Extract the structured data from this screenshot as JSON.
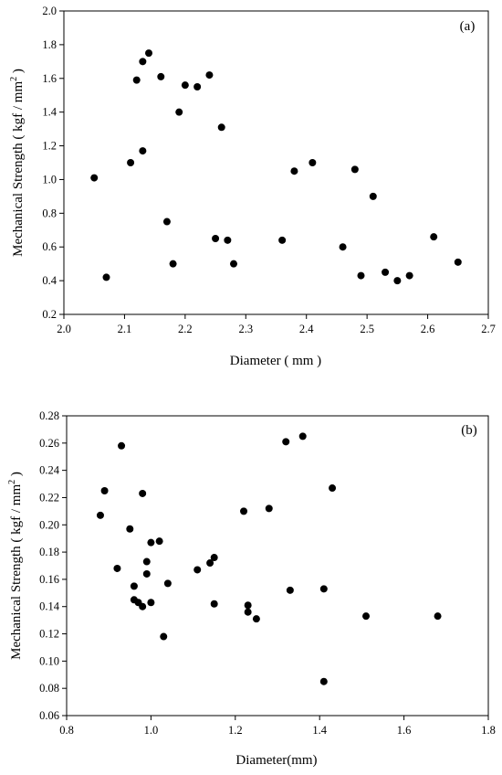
{
  "chart_data": [
    {
      "type": "scatter",
      "panel_label": "(a)",
      "xlabel": "Diameter ( mm )",
      "ylabel_main": "Mechanical Strength ( kgf / mm",
      "ylabel_sup": "2",
      "ylabel_tail": " )",
      "xlim": [
        2.0,
        2.7
      ],
      "ylim": [
        0.2,
        2.0
      ],
      "xticks": [
        "2.0",
        "2.1",
        "2.2",
        "2.3",
        "2.4",
        "2.5",
        "2.6",
        "2.7"
      ],
      "yticks": [
        "0.2",
        "0.4",
        "0.6",
        "0.8",
        "1.0",
        "1.2",
        "1.4",
        "1.6",
        "1.8",
        "2.0"
      ],
      "grid": false,
      "marker_color": "#000000",
      "points": [
        {
          "x": 2.05,
          "y": 1.01
        },
        {
          "x": 2.07,
          "y": 0.42
        },
        {
          "x": 2.11,
          "y": 1.1
        },
        {
          "x": 2.12,
          "y": 1.59
        },
        {
          "x": 2.13,
          "y": 1.7
        },
        {
          "x": 2.13,
          "y": 1.17
        },
        {
          "x": 2.14,
          "y": 1.75
        },
        {
          "x": 2.16,
          "y": 1.61
        },
        {
          "x": 2.17,
          "y": 0.75
        },
        {
          "x": 2.18,
          "y": 0.5
        },
        {
          "x": 2.19,
          "y": 1.4
        },
        {
          "x": 2.2,
          "y": 1.56
        },
        {
          "x": 2.22,
          "y": 1.55
        },
        {
          "x": 2.24,
          "y": 1.62
        },
        {
          "x": 2.25,
          "y": 0.65
        },
        {
          "x": 2.26,
          "y": 1.31
        },
        {
          "x": 2.27,
          "y": 0.64
        },
        {
          "x": 2.28,
          "y": 0.5
        },
        {
          "x": 2.36,
          "y": 0.64
        },
        {
          "x": 2.38,
          "y": 1.05
        },
        {
          "x": 2.41,
          "y": 1.1
        },
        {
          "x": 2.46,
          "y": 0.6
        },
        {
          "x": 2.48,
          "y": 1.06
        },
        {
          "x": 2.49,
          "y": 0.43
        },
        {
          "x": 2.51,
          "y": 0.9
        },
        {
          "x": 2.53,
          "y": 0.45
        },
        {
          "x": 2.55,
          "y": 0.4
        },
        {
          "x": 2.57,
          "y": 0.43
        },
        {
          "x": 2.61,
          "y": 0.66
        },
        {
          "x": 2.65,
          "y": 0.51
        }
      ]
    },
    {
      "type": "scatter",
      "panel_label": "(b)",
      "xlabel": "Diameter(mm)",
      "ylabel_main": "Mechanical Strength ( kgf / mm",
      "ylabel_sup": "2",
      "ylabel_tail": " )",
      "xlim": [
        0.8,
        1.8
      ],
      "ylim": [
        0.06,
        0.28
      ],
      "xticks": [
        "0.8",
        "1.0",
        "1.2",
        "1.4",
        "1.6",
        "1.8"
      ],
      "yticks": [
        "0.06",
        "0.08",
        "0.10",
        "0.12",
        "0.14",
        "0.16",
        "0.18",
        "0.20",
        "0.22",
        "0.24",
        "0.26",
        "0.28"
      ],
      "grid": false,
      "marker_color": "#000000",
      "points": [
        {
          "x": 0.88,
          "y": 0.207
        },
        {
          "x": 0.89,
          "y": 0.225
        },
        {
          "x": 0.92,
          "y": 0.168
        },
        {
          "x": 0.93,
          "y": 0.258
        },
        {
          "x": 0.95,
          "y": 0.197
        },
        {
          "x": 0.96,
          "y": 0.155
        },
        {
          "x": 0.96,
          "y": 0.145
        },
        {
          "x": 0.97,
          "y": 0.143
        },
        {
          "x": 0.98,
          "y": 0.14
        },
        {
          "x": 0.98,
          "y": 0.223
        },
        {
          "x": 0.99,
          "y": 0.173
        },
        {
          "x": 0.99,
          "y": 0.164
        },
        {
          "x": 1.0,
          "y": 0.187
        },
        {
          "x": 1.0,
          "y": 0.143
        },
        {
          "x": 1.02,
          "y": 0.188
        },
        {
          "x": 1.03,
          "y": 0.118
        },
        {
          "x": 1.04,
          "y": 0.157
        },
        {
          "x": 1.11,
          "y": 0.167
        },
        {
          "x": 1.14,
          "y": 0.172
        },
        {
          "x": 1.15,
          "y": 0.176
        },
        {
          "x": 1.15,
          "y": 0.142
        },
        {
          "x": 1.22,
          "y": 0.21
        },
        {
          "x": 1.23,
          "y": 0.141
        },
        {
          "x": 1.23,
          "y": 0.136
        },
        {
          "x": 1.25,
          "y": 0.131
        },
        {
          "x": 1.28,
          "y": 0.212
        },
        {
          "x": 1.32,
          "y": 0.261
        },
        {
          "x": 1.33,
          "y": 0.152
        },
        {
          "x": 1.36,
          "y": 0.265
        },
        {
          "x": 1.41,
          "y": 0.153
        },
        {
          "x": 1.41,
          "y": 0.085
        },
        {
          "x": 1.43,
          "y": 0.227
        },
        {
          "x": 1.51,
          "y": 0.133
        },
        {
          "x": 1.68,
          "y": 0.133
        }
      ]
    }
  ]
}
